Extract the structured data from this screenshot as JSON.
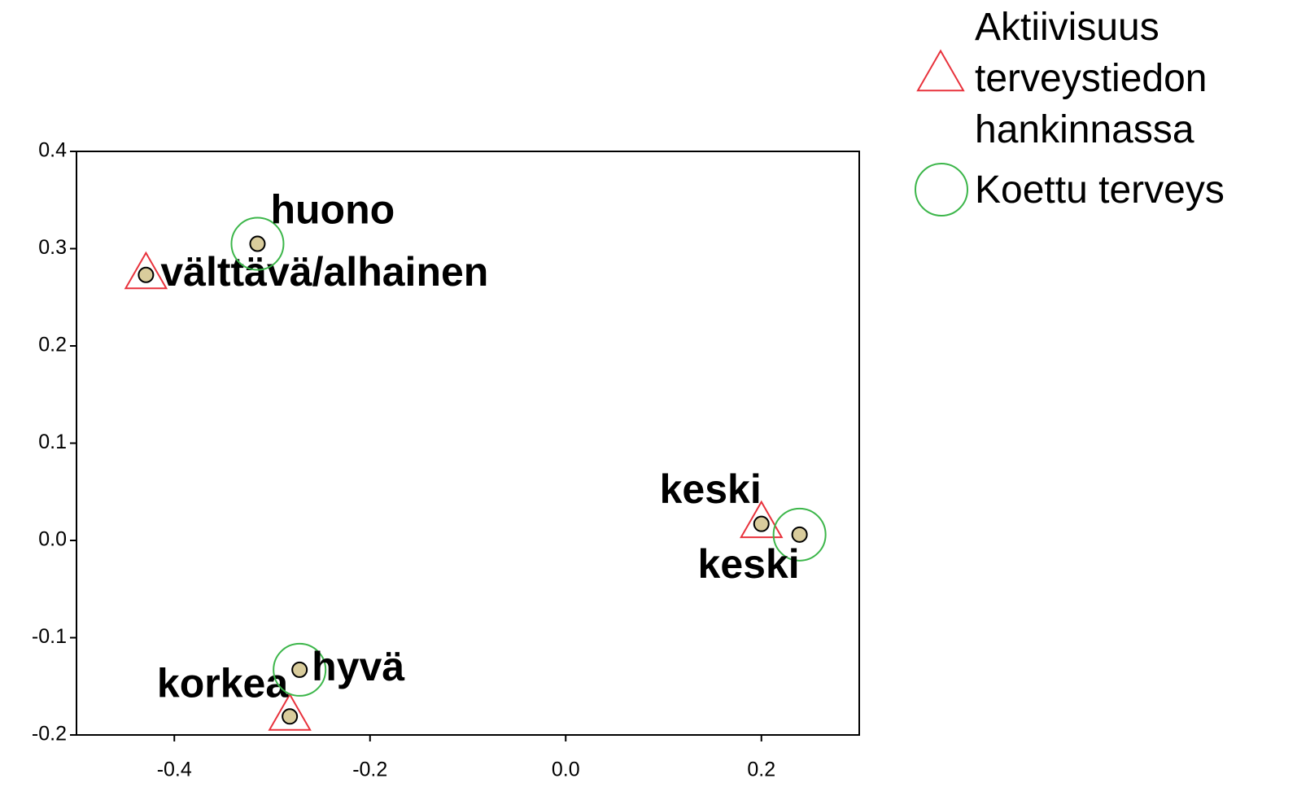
{
  "chart_data": {
    "type": "scatter",
    "series": [
      {
        "name": "Aktiivisuus terveystiedon hankinnassa",
        "color": "#e8323c",
        "marker": "triangle",
        "x": [
          -0.429,
          0.2,
          -0.282
        ],
        "y": [
          0.273,
          0.017,
          -0.181
        ],
        "labels": [
          "välttävä/alhainen",
          "keski",
          "korkea"
        ]
      },
      {
        "name": "Koettu terveys",
        "color": "#3cb64a",
        "marker": "circle",
        "x": [
          -0.315,
          0.239,
          -0.272
        ],
        "y": [
          0.305,
          0.006,
          -0.133
        ],
        "labels": [
          "huono",
          "keski",
          "hyvä"
        ]
      }
    ],
    "xlim": [
      -0.5,
      0.3
    ],
    "xticks": [
      -0.4,
      -0.2,
      {
        "value": 0,
        "label": "0.0"
      },
      0.2
    ],
    "ylim": [
      -0.2,
      0.4
    ],
    "yticks": [
      0.4,
      0.3,
      0.2,
      0.1,
      {
        "value": 0,
        "label": "0.0"
      },
      -0.1,
      -0.2
    ]
  }
}
